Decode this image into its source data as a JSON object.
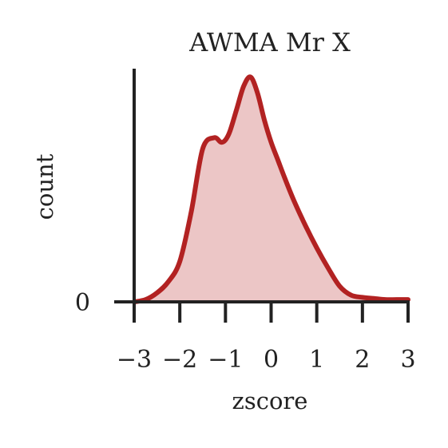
{
  "chart_data": {
    "type": "area",
    "title": "AWMA Mr X",
    "xlabel": "zscore",
    "ylabel": "count",
    "xlim": [
      -3,
      3
    ],
    "ylim": [
      0,
      1.03
    ],
    "x_ticks": [
      {
        "value": -3,
        "label": "−3"
      },
      {
        "value": -2,
        "label": "−2"
      },
      {
        "value": -1,
        "label": "−1"
      },
      {
        "value": 0,
        "label": "0"
      },
      {
        "value": 1,
        "label": "1"
      },
      {
        "value": 2,
        "label": "2"
      },
      {
        "value": 3,
        "label": "3"
      }
    ],
    "y_ticks": [
      {
        "value": 0,
        "label": "0"
      }
    ],
    "grid": false,
    "line_color": "#b22222",
    "fill_color": "#ecc6c6",
    "x": [
      -3.0,
      -2.75,
      -2.5,
      -2.25,
      -2.0,
      -1.75,
      -1.5,
      -1.25,
      -1.1,
      -1.0,
      -0.9,
      -0.75,
      -0.6,
      -0.45,
      -0.3,
      -0.15,
      0.0,
      0.15,
      0.3,
      0.5,
      0.75,
      1.0,
      1.25,
      1.5,
      1.75,
      2.0,
      2.25,
      2.5,
      2.75,
      3.0
    ],
    "values": [
      0.0,
      0.01,
      0.04,
      0.09,
      0.18,
      0.4,
      0.68,
      0.73,
      0.71,
      0.72,
      0.76,
      0.86,
      0.96,
      1.0,
      0.93,
      0.81,
      0.71,
      0.63,
      0.55,
      0.45,
      0.34,
      0.24,
      0.15,
      0.07,
      0.03,
      0.02,
      0.015,
      0.01,
      0.01,
      0.01
    ]
  }
}
